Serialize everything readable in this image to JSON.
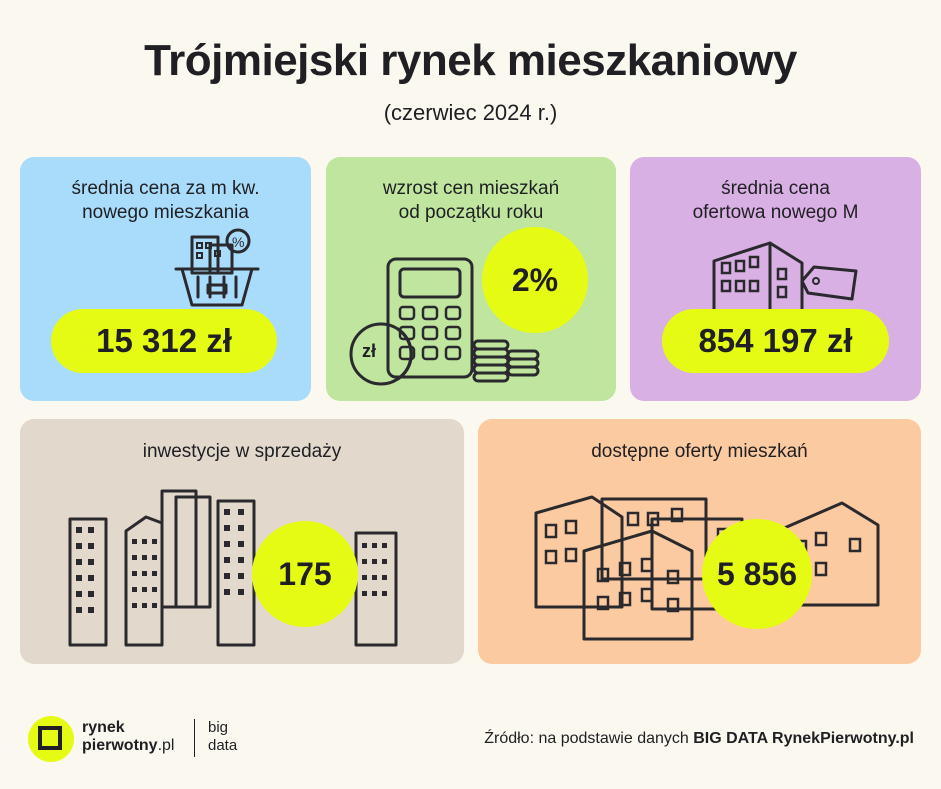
{
  "header": {
    "title": "Trójmiejski rynek mieszkaniowy",
    "subtitle": "(czerwiec 2024 r.)"
  },
  "cards": {
    "price_m2": {
      "label_line1": "średnia cena za m kw.",
      "label_line2": "nowego mieszkania",
      "value": "15 312 zł",
      "color": "#a9dcfa"
    },
    "growth": {
      "label_line1": "wzrost cen mieszkań",
      "label_line2": "od początku roku",
      "value": "2%",
      "coin_label": "zł",
      "color": "#bfe59e"
    },
    "avg_offer": {
      "label_line1": "średnia cena",
      "label_line2": "ofertowa nowego M",
      "value": "854 197 zł",
      "color": "#d9b0e4"
    },
    "investments": {
      "label": "inwestycje w sprzedaży",
      "value": "175",
      "color": "#e2d8cc"
    },
    "offers": {
      "label": "dostępne oferty mieszkań",
      "value": "5 856",
      "color": "#fccaa0"
    }
  },
  "footer": {
    "logo_line1": "rynek",
    "logo_line2": "pierwotny",
    "logo_suffix": ".pl",
    "big": "big",
    "data": "data",
    "source_prefix": "Źródło: na podstawie danych ",
    "source_bold": "BIG DATA RynekPierwotny.pl"
  }
}
